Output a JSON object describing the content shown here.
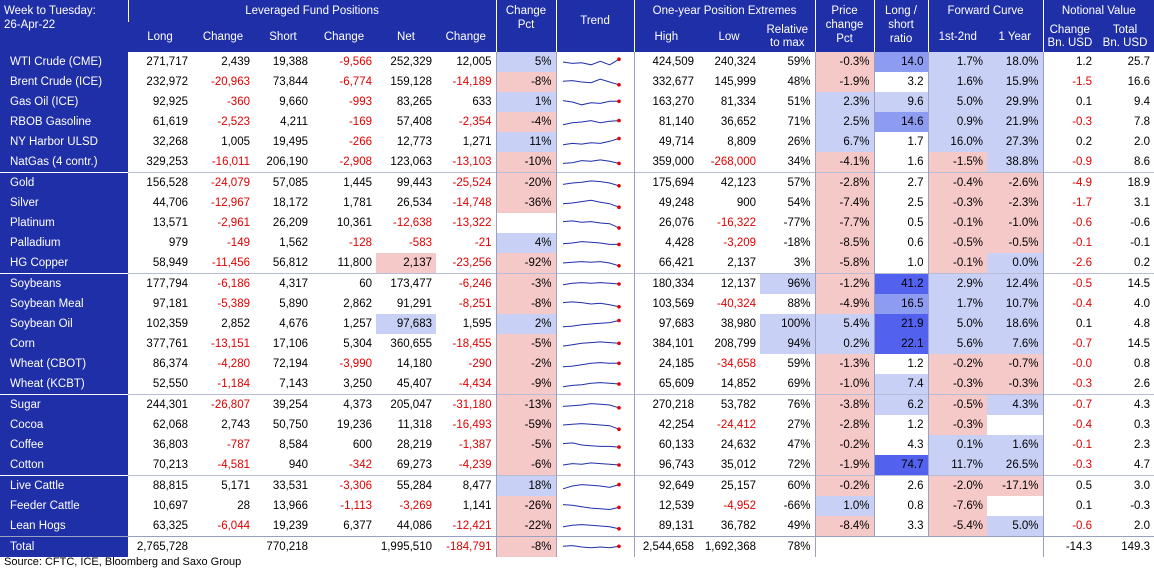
{
  "header": {
    "corner_line1": "Week to Tuesday:",
    "corner_line2": "26-Apr-22",
    "group_lfp": "Leveraged Fund Positions",
    "group_extremes": "One-year Position Extremes",
    "group_price_l1": "Price",
    "group_price_l2": "change",
    "group_price_l3": "Pct",
    "group_ratio_l1": "Long /",
    "group_ratio_l2": "short",
    "group_ratio_l3": "ratio",
    "group_curve": "Forward Curve",
    "group_notional": "Notional Value",
    "col_long": "Long",
    "col_change1": "Change",
    "col_short": "Short",
    "col_change2": "Change",
    "col_net": "Net",
    "col_change3": "Change",
    "col_chpct_l1": "Change",
    "col_chpct_l2": "Pct",
    "col_trend": "Trend",
    "col_high": "High",
    "col_low": "Low",
    "col_rel_l1": "Relative",
    "col_rel_l2": "to max",
    "col_c12": "1st-2nd",
    "col_c1y": "1 Year",
    "col_nchg_l1": "Change",
    "col_nchg_l2": "Bn. USD",
    "col_ntot_l1": "Total",
    "col_ntot_l2": "Bn. USD"
  },
  "colors": {
    "header_bg": "#1f2fa8",
    "negative_text": "#e00000",
    "pink": "#f6c9c9",
    "light_blue": "#c8d1f5",
    "medium_blue": "#8d9cf0",
    "dark_blue": "#5262ef"
  },
  "rows": [
    {
      "name": "WTI Crude (CME)",
      "long": "271,717",
      "chg1": "2,439",
      "short": "19,388",
      "chg2": "-9,566",
      "net": "252,329",
      "chg3": "12,005",
      "chpct": "5%",
      "chpct_c": "lb",
      "trend": [
        0.5,
        0.4,
        0.45,
        0.3,
        0.55,
        0.3,
        0.7
      ],
      "high": "424,509",
      "low": "240,324",
      "rel": "59%",
      "price": "-0.3%",
      "price_c": "p",
      "ratio": "14.0",
      "ratio_c": "mb",
      "c12": "1.7%",
      "c12_c": "lb",
      "c1y": "18.0%",
      "c1y_c": "lb",
      "nchg": "1.2",
      "ntot": "25.7"
    },
    {
      "name": "Brent Crude (ICE)",
      "long": "232,972",
      "chg1": "-20,963",
      "short": "73,844",
      "chg2": "-6,774",
      "net": "159,128",
      "chg3": "-14,189",
      "chpct": "-8%",
      "chpct_c": "p",
      "trend": [
        0.55,
        0.6,
        0.5,
        0.45,
        0.7,
        0.5,
        0.3
      ],
      "high": "332,677",
      "low": "145,999",
      "rel": "48%",
      "price": "-1.9%",
      "price_c": "p",
      "ratio": "3.2",
      "ratio_c": "",
      "c12": "1.6%",
      "c12_c": "lb",
      "c1y": "15.9%",
      "c1y_c": "lb",
      "nchg": "-1.5",
      "ntot": "16.6"
    },
    {
      "name": "Gas Oil (ICE)",
      "long": "92,925",
      "chg1": "-360",
      "short": "9,660",
      "chg2": "-993",
      "net": "83,265",
      "chg3": "633",
      "chpct": "1%",
      "chpct_c": "lb",
      "trend": [
        0.6,
        0.5,
        0.3,
        0.45,
        0.4,
        0.55,
        0.55
      ],
      "high": "163,270",
      "low": "81,334",
      "rel": "51%",
      "price": "2.3%",
      "price_c": "lb",
      "ratio": "9.6",
      "ratio_c": "lb",
      "c12": "5.0%",
      "c12_c": "lb",
      "c1y": "29.9%",
      "c1y_c": "lb",
      "nchg": "0.1",
      "ntot": "9.4"
    },
    {
      "name": "RBOB Gasoline",
      "long": "61,619",
      "chg1": "-2,523",
      "short": "4,211",
      "chg2": "-169",
      "net": "57,408",
      "chg3": "-2,354",
      "chpct": "-4%",
      "chpct_c": "p",
      "trend": [
        0.3,
        0.45,
        0.5,
        0.6,
        0.45,
        0.55,
        0.6
      ],
      "high": "81,140",
      "low": "36,652",
      "rel": "71%",
      "price": "2.5%",
      "price_c": "lb",
      "ratio": "14.6",
      "ratio_c": "mb",
      "c12": "0.9%",
      "c12_c": "lb",
      "c1y": "21.9%",
      "c1y_c": "lb",
      "nchg": "-0.3",
      "ntot": "7.8"
    },
    {
      "name": "NY Harbor ULSD",
      "long": "32,268",
      "chg1": "1,005",
      "short": "19,495",
      "chg2": "-266",
      "net": "12,773",
      "chg3": "1,271",
      "chpct": "11%",
      "chpct_c": "lb",
      "trend": [
        0.3,
        0.4,
        0.35,
        0.45,
        0.4,
        0.55,
        0.75
      ],
      "high": "49,714",
      "low": "8,809",
      "rel": "26%",
      "price": "6.7%",
      "price_c": "lb",
      "ratio": "1.7",
      "ratio_c": "",
      "c12": "16.0%",
      "c12_c": "lb",
      "c1y": "27.3%",
      "c1y_c": "lb",
      "nchg": "0.2",
      "ntot": "2.0"
    },
    {
      "name": "NatGas (4 contr.)",
      "long": "329,253",
      "chg1": "-16,011",
      "short": "206,190",
      "chg2": "-2,908",
      "net": "123,063",
      "chg3": "-13,103",
      "chpct": "-10%",
      "chpct_c": "p",
      "trend": [
        0.4,
        0.45,
        0.6,
        0.55,
        0.65,
        0.55,
        0.4
      ],
      "high": "359,000",
      "low": "-268,000",
      "rel": "34%",
      "price": "-4.1%",
      "price_c": "p",
      "ratio": "1.6",
      "ratio_c": "",
      "c12": "-1.5%",
      "c12_c": "p",
      "c1y": "38.8%",
      "c1y_c": "lb",
      "nchg": "-0.9",
      "ntot": "8.6"
    },
    {
      "name": "Gold",
      "long": "156,528",
      "chg1": "-24,079",
      "short": "57,085",
      "chg2": "1,445",
      "net": "99,443",
      "chg3": "-25,524",
      "chpct": "-20%",
      "chpct_c": "p",
      "trend": [
        0.4,
        0.5,
        0.55,
        0.65,
        0.6,
        0.5,
        0.3
      ],
      "high": "175,694",
      "low": "42,123",
      "rel": "57%",
      "price": "-2.8%",
      "price_c": "p",
      "ratio": "2.7",
      "ratio_c": "",
      "c12": "-0.4%",
      "c12_c": "p",
      "c1y": "-2.6%",
      "c1y_c": "p",
      "nchg": "-4.9",
      "ntot": "18.9",
      "sep": true
    },
    {
      "name": "Silver",
      "long": "44,706",
      "chg1": "-12,967",
      "short": "18,172",
      "chg2": "1,781",
      "net": "26,534",
      "chg3": "-14,748",
      "chpct": "-36%",
      "chpct_c": "p",
      "trend": [
        0.45,
        0.5,
        0.6,
        0.7,
        0.55,
        0.45,
        0.2
      ],
      "high": "49,248",
      "low": "900",
      "rel": "54%",
      "price": "-7.4%",
      "price_c": "p",
      "ratio": "2.5",
      "ratio_c": "",
      "c12": "-0.3%",
      "c12_c": "p",
      "c1y": "-2.3%",
      "c1y_c": "p",
      "nchg": "-1.7",
      "ntot": "3.1"
    },
    {
      "name": "Platinum",
      "long": "13,571",
      "chg1": "-2,961",
      "short": "26,209",
      "chg2": "10,361",
      "net": "-12,638",
      "chg3": "-13,322",
      "chpct": "",
      "chpct_c": "",
      "trend": [
        0.6,
        0.65,
        0.55,
        0.6,
        0.5,
        0.45,
        0.15
      ],
      "high": "26,076",
      "low": "-16,322",
      "rel": "-77%",
      "price": "-7.7%",
      "price_c": "p",
      "ratio": "0.5",
      "ratio_c": "",
      "c12": "-0.1%",
      "c12_c": "p",
      "c1y": "-1.0%",
      "c1y_c": "p",
      "nchg": "-0.6",
      "ntot": "-0.6"
    },
    {
      "name": "Palladium",
      "long": "979",
      "chg1": "-149",
      "short": "1,562",
      "chg2": "-128",
      "net": "-583",
      "chg3": "-21",
      "chpct": "4%",
      "chpct_c": "lb",
      "trend": [
        0.45,
        0.5,
        0.6,
        0.55,
        0.5,
        0.4,
        0.4
      ],
      "high": "4,428",
      "low": "-3,209",
      "rel": "-18%",
      "price": "-8.5%",
      "price_c": "p",
      "ratio": "0.6",
      "ratio_c": "",
      "c12": "-0.5%",
      "c12_c": "p",
      "c1y": "-0.5%",
      "c1y_c": "p",
      "nchg": "-0.1",
      "ntot": "-0.1"
    },
    {
      "name": "HG Copper",
      "long": "58,949",
      "chg1": "-11,456",
      "short": "56,812",
      "chg2": "11,800",
      "net": "2,137",
      "net_c": "p",
      "chg3": "-23,256",
      "chpct": "-92%",
      "chpct_c": "p",
      "trend": [
        0.5,
        0.55,
        0.6,
        0.55,
        0.6,
        0.5,
        0.3
      ],
      "high": "66,421",
      "low": "2,137",
      "rel": "3%",
      "price": "-5.8%",
      "price_c": "p",
      "ratio": "1.0",
      "ratio_c": "",
      "c12": "-0.1%",
      "c12_c": "p",
      "c1y": "0.0%",
      "c1y_c": "lb",
      "nchg": "-2.6",
      "ntot": "0.2"
    },
    {
      "name": "Soybeans",
      "long": "177,794",
      "chg1": "-6,186",
      "short": "4,317",
      "chg2": "60",
      "net": "173,477",
      "chg3": "-6,246",
      "chpct": "-3%",
      "chpct_c": "p",
      "trend": [
        0.45,
        0.55,
        0.6,
        0.55,
        0.6,
        0.55,
        0.5
      ],
      "high": "180,334",
      "low": "12,137",
      "rel": "96%",
      "rel_c": "lb",
      "price": "-1.2%",
      "price_c": "p",
      "ratio": "41.2",
      "ratio_c": "db",
      "c12": "2.9%",
      "c12_c": "lb",
      "c1y": "12.4%",
      "c1y_c": "lb",
      "nchg": "-0.5",
      "ntot": "14.5",
      "sep": true
    },
    {
      "name": "Soybean Meal",
      "long": "97,181",
      "chg1": "-5,389",
      "short": "5,890",
      "chg2": "2,862",
      "net": "91,291",
      "chg3": "-8,251",
      "chpct": "-8%",
      "chpct_c": "p",
      "trend": [
        0.6,
        0.65,
        0.6,
        0.5,
        0.55,
        0.45,
        0.3
      ],
      "high": "103,569",
      "low": "-40,324",
      "rel": "88%",
      "price": "-4.9%",
      "price_c": "p",
      "ratio": "16.5",
      "ratio_c": "mb",
      "c12": "1.7%",
      "c12_c": "lb",
      "c1y": "10.7%",
      "c1y_c": "lb",
      "nchg": "-0.4",
      "ntot": "4.0"
    },
    {
      "name": "Soybean Oil",
      "long": "102,359",
      "chg1": "2,852",
      "short": "4,676",
      "chg2": "1,257",
      "net": "97,683",
      "net_c": "lb",
      "chg3": "1,595",
      "chpct": "2%",
      "chpct_c": "lb",
      "trend": [
        0.3,
        0.35,
        0.45,
        0.5,
        0.55,
        0.6,
        0.75
      ],
      "high": "97,683",
      "low": "38,980",
      "rel": "100%",
      "rel_c": "lb",
      "price": "5.4%",
      "price_c": "lb",
      "ratio": "21.9",
      "ratio_c": "db",
      "c12": "5.0%",
      "c12_c": "lb",
      "c1y": "18.6%",
      "c1y_c": "lb",
      "nchg": "0.1",
      "ntot": "4.8"
    },
    {
      "name": "Corn",
      "long": "377,761",
      "chg1": "-13,151",
      "short": "17,106",
      "chg2": "5,304",
      "net": "360,655",
      "chg3": "-18,455",
      "chpct": "-5%",
      "chpct_c": "p",
      "trend": [
        0.35,
        0.45,
        0.55,
        0.6,
        0.65,
        0.6,
        0.55
      ],
      "high": "384,101",
      "low": "208,799",
      "rel": "94%",
      "rel_c": "lb",
      "price": "0.2%",
      "price_c": "lb",
      "ratio": "22.1",
      "ratio_c": "db",
      "c12": "5.6%",
      "c12_c": "lb",
      "c1y": "7.6%",
      "c1y_c": "lb",
      "nchg": "-0.7",
      "ntot": "14.5"
    },
    {
      "name": "Wheat (CBOT)",
      "long": "86,374",
      "chg1": "-4,280",
      "short": "72,194",
      "chg2": "-3,990",
      "net": "14,180",
      "chg3": "-290",
      "chpct": "-2%",
      "chpct_c": "p",
      "trend": [
        0.3,
        0.35,
        0.45,
        0.55,
        0.6,
        0.55,
        0.55
      ],
      "high": "24,185",
      "low": "-34,658",
      "rel": "59%",
      "price": "-1.3%",
      "price_c": "p",
      "ratio": "1.2",
      "ratio_c": "",
      "c12": "-0.2%",
      "c12_c": "p",
      "c1y": "-0.7%",
      "c1y_c": "p",
      "nchg": "-0.0",
      "ntot": "0.8"
    },
    {
      "name": "Wheat (KCBT)",
      "long": "52,550",
      "chg1": "-1,184",
      "short": "7,143",
      "chg2": "3,250",
      "net": "45,407",
      "chg3": "-4,434",
      "chpct": "-9%",
      "chpct_c": "p",
      "trend": [
        0.3,
        0.4,
        0.45,
        0.55,
        0.6,
        0.55,
        0.5
      ],
      "high": "65,609",
      "low": "14,852",
      "rel": "69%",
      "price": "-1.0%",
      "price_c": "p",
      "ratio": "7.4",
      "ratio_c": "lb",
      "c12": "-0.3%",
      "c12_c": "p",
      "c1y": "-0.3%",
      "c1y_c": "p",
      "nchg": "-0.3",
      "ntot": "2.6"
    },
    {
      "name": "Sugar",
      "long": "244,301",
      "chg1": "-26,807",
      "short": "39,254",
      "chg2": "4,373",
      "net": "205,047",
      "chg3": "-31,180",
      "chpct": "-13%",
      "chpct_c": "p",
      "trend": [
        0.4,
        0.45,
        0.5,
        0.6,
        0.55,
        0.5,
        0.3
      ],
      "high": "270,218",
      "low": "53,782",
      "rel": "76%",
      "price": "-3.8%",
      "price_c": "p",
      "ratio": "6.2",
      "ratio_c": "lb",
      "c12": "-0.5%",
      "c12_c": "p",
      "c1y": "4.3%",
      "c1y_c": "lb",
      "nchg": "-0.7",
      "ntot": "4.3",
      "sep": true
    },
    {
      "name": "Cocoa",
      "long": "62,068",
      "chg1": "2,743",
      "short": "50,750",
      "chg2": "19,236",
      "net": "11,318",
      "chg3": "-16,493",
      "chpct": "-59%",
      "chpct_c": "p",
      "trend": [
        0.5,
        0.55,
        0.6,
        0.55,
        0.5,
        0.45,
        0.2
      ],
      "high": "42,254",
      "low": "-24,412",
      "rel": "27%",
      "price": "-2.8%",
      "price_c": "p",
      "ratio": "1.2",
      "ratio_c": "",
      "c12": "-0.3%",
      "c12_c": "p",
      "c1y": "",
      "c1y_c": "",
      "nchg": "-0.4",
      "ntot": "0.3"
    },
    {
      "name": "Coffee",
      "long": "36,803",
      "chg1": "-787",
      "short": "8,584",
      "chg2": "600",
      "net": "28,219",
      "chg3": "-1,387",
      "chpct": "-5%",
      "chpct_c": "p",
      "trend": [
        0.6,
        0.65,
        0.5,
        0.45,
        0.4,
        0.4,
        0.35
      ],
      "high": "60,133",
      "low": "24,632",
      "rel": "47%",
      "price": "-0.2%",
      "price_c": "p",
      "ratio": "4.3",
      "ratio_c": "",
      "c12": "0.1%",
      "c12_c": "lb",
      "c1y": "1.6%",
      "c1y_c": "lb",
      "nchg": "-0.1",
      "ntot": "2.3"
    },
    {
      "name": "Cotton",
      "long": "70,213",
      "chg1": "-4,581",
      "short": "940",
      "chg2": "-342",
      "net": "69,273",
      "chg3": "-4,239",
      "chpct": "-6%",
      "chpct_c": "p",
      "trend": [
        0.5,
        0.6,
        0.55,
        0.65,
        0.6,
        0.55,
        0.5
      ],
      "high": "96,743",
      "low": "35,012",
      "rel": "72%",
      "price": "-1.9%",
      "price_c": "p",
      "ratio": "74.7",
      "ratio_c": "db",
      "c12": "11.7%",
      "c12_c": "lb",
      "c1y": "26.5%",
      "c1y_c": "lb",
      "nchg": "-0.3",
      "ntot": "4.7"
    },
    {
      "name": "Live Cattle",
      "long": "88,815",
      "chg1": "5,171",
      "short": "33,531",
      "chg2": "-3,306",
      "net": "55,284",
      "chg3": "8,477",
      "chpct": "18%",
      "chpct_c": "lb",
      "trend": [
        0.3,
        0.5,
        0.6,
        0.55,
        0.5,
        0.4,
        0.6
      ],
      "high": "92,649",
      "low": "25,157",
      "rel": "60%",
      "price": "-0.2%",
      "price_c": "p",
      "ratio": "2.6",
      "ratio_c": "",
      "c12": "-2.0%",
      "c12_c": "p",
      "c1y": "-17.1%",
      "c1y_c": "p",
      "nchg": "0.5",
      "ntot": "3.0",
      "sep": true
    },
    {
      "name": "Feeder Cattle",
      "long": "10,697",
      "chg1": "28",
      "short": "13,966",
      "chg2": "-1,113",
      "net": "-3,269",
      "chg3": "1,141",
      "chpct": "-26%",
      "chpct_c": "p",
      "trend": [
        0.6,
        0.55,
        0.45,
        0.35,
        0.3,
        0.25,
        0.4
      ],
      "high": "12,539",
      "low": "-4,952",
      "rel": "-66%",
      "price": "1.0%",
      "price_c": "lb",
      "ratio": "0.8",
      "ratio_c": "",
      "c12": "-7.6%",
      "c12_c": "p",
      "c1y": "",
      "c1y_c": "",
      "nchg": "0.1",
      "ntot": "-0.3"
    },
    {
      "name": "Lean Hogs",
      "long": "63,325",
      "chg1": "-6,044",
      "short": "19,239",
      "chg2": "6,377",
      "net": "44,086",
      "chg3": "-12,421",
      "chpct": "-22%",
      "chpct_c": "p",
      "trend": [
        0.45,
        0.55,
        0.6,
        0.55,
        0.5,
        0.45,
        0.3
      ],
      "high": "89,131",
      "low": "36,782",
      "rel": "49%",
      "price": "-8.4%",
      "price_c": "p",
      "ratio": "3.3",
      "ratio_c": "",
      "c12": "-5.4%",
      "c12_c": "p",
      "c1y": "5.0%",
      "c1y_c": "lb",
      "nchg": "-0.6",
      "ntot": "2.0"
    }
  ],
  "total": {
    "name": "Total",
    "long": "2,765,728",
    "chg1": "",
    "short": "770,218",
    "chg2": "",
    "net": "1,995,510",
    "chg3": "-184,791",
    "chpct": "-8%",
    "chpct_c": "p",
    "high": "2,544,658",
    "low": "1,692,368",
    "rel": "78%",
    "nchg": "-14.3",
    "ntot": "149.3"
  },
  "footer": {
    "source": "Source: CFTC, ICE, Bloomberg and Saxo Group"
  }
}
